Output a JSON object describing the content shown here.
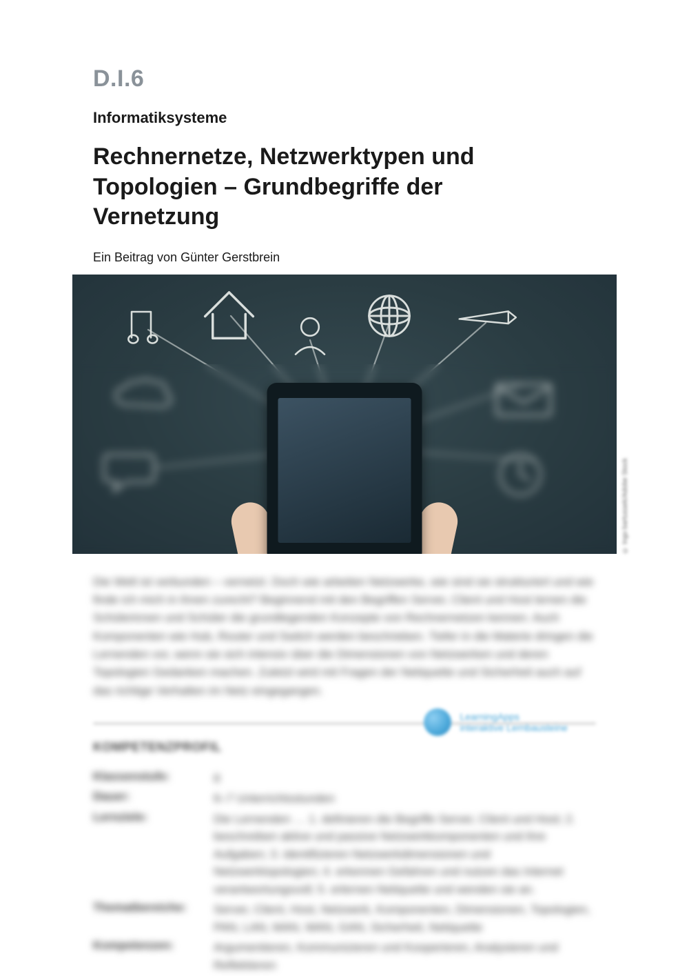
{
  "header": {
    "code": "D.I.6",
    "category": "Informatiksysteme",
    "title": "Rechnernetze, Netzwerktypen und Topologien – Grundbegriffe der Vernetzung",
    "author": "Ein Beitrag von Günter Gerstbrein"
  },
  "hero": {
    "credit": "© Ingo bartussek/Adobe Stock",
    "icons": [
      "music",
      "house",
      "person",
      "globe",
      "pencil",
      "speech",
      "cloud",
      "mail",
      "clock"
    ]
  },
  "paragraph": "Die Welt ist verbunden – vernetzt. Doch wie arbeiten Netzwerke, wie sind sie strukturiert und wie finde ich mich in ihnen zurecht? Beginnend mit den Begriffen Server, Client und Host lernen die Schülerinnen und Schüler die grundlegenden Konzepte von Rechnernetzen kennen. Auch Komponenten wie Hub, Router und Switch werden beschrieben. Tiefer in die Materie dringen die Lernenden vor, wenn sie sich intensiv über die Dimensionen von Netzwerken und deren Topologien Gedanken machen. Zuletzt wird mit Fragen der Netiquette und Sicherheit auch auf das richtige Verhalten im Netz eingegangen.",
  "profile_heading": "KOMPETENZPROFIL",
  "badge": {
    "line1": "LearningApps",
    "line2": "interaktive Lernbausteine"
  },
  "profile": [
    {
      "k": "Klassenstufe:",
      "v": "8"
    },
    {
      "k": "Dauer:",
      "v": "6–7 Unterrichtsstunden"
    },
    {
      "k": "Lernziele:",
      "v": "Die Lernenden … 1. definieren die Begriffe Server, Client und Host; 2. beschreiben aktive und passive Netzwerkkomponenten und ihre Aufgaben; 3. identifizieren Netzwerkdimensionen und Netzwerktopologien; 4. erkennen Gefahren und nutzen das Internet verantwortungsvoll; 5. erlernen Netiquette und wenden sie an."
    },
    {
      "k": "Thematbereiche:",
      "v": "Server, Client, Host, Netzwerk, Komponenten, Dimensionen, Topologien, PAN, LAN, MAN, WAN, GAN, Sicherheit, Netiquette"
    },
    {
      "k": "Kompetenzen:",
      "v": "Argumentieren, Kommunizieren und Kooperieren, Analysieren und Reflektieren"
    }
  ]
}
